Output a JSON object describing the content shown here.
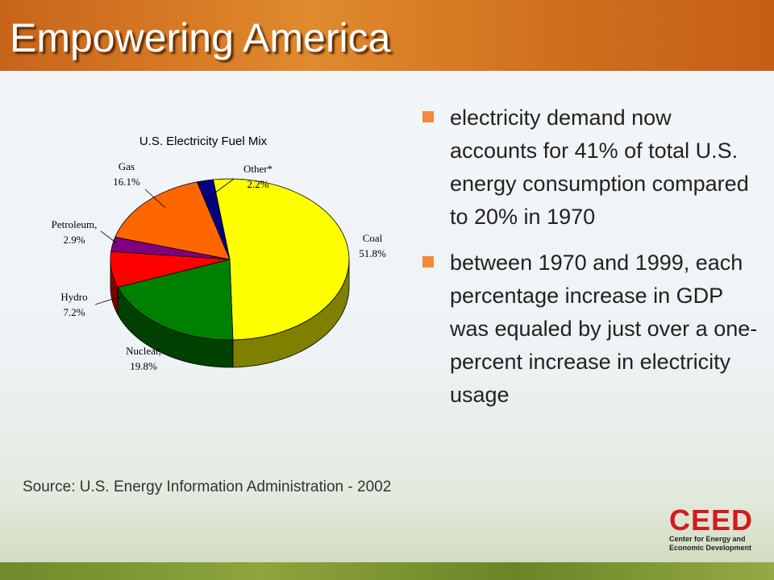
{
  "slide": {
    "title": "Empowering America",
    "bullets": [
      "electricity demand now accounts for 41% of total U.S. energy consumption compared to 20% in 1970",
      "between 1970 and 1999, each percentage increase in GDP was equaled by just over a one-percent increase in electricity usage"
    ],
    "source": "Source: U.S. Energy Information Administration - 2002",
    "logo": {
      "name": "CEED",
      "line1": "Center for Energy and",
      "line2": "Economic Development"
    }
  },
  "chart_data": {
    "type": "pie",
    "title": "U.S. Electricity Fuel Mix",
    "categories": [
      "Coal",
      "Nuclear,",
      "Hydro",
      "Petroleum,",
      "Gas",
      "Other*"
    ],
    "values": [
      51.8,
      19.8,
      7.2,
      2.9,
      16.1,
      2.2
    ],
    "value_labels": [
      "51.8%",
      "19.8%",
      "7.2%",
      "2.9%",
      "16.1%",
      "2.2%"
    ],
    "colors": [
      "#ffff00",
      "#008000",
      "#ff0000",
      "#800080",
      "#ff6600",
      "#000080"
    ]
  }
}
